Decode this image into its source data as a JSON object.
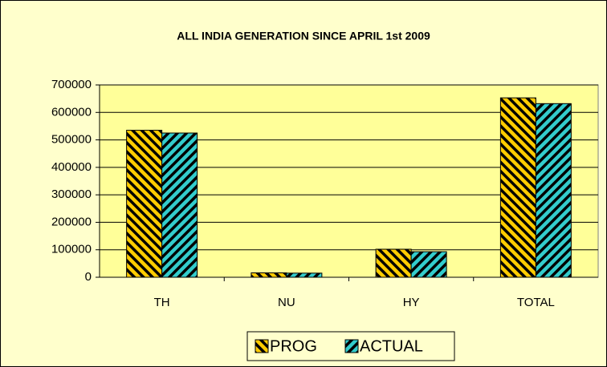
{
  "chart_data": {
    "type": "bar",
    "title": "ALL INDIA GENERATION SINCE APRIL 1st 2009",
    "categories": [
      "TH",
      "NU",
      "HY",
      "TOTAL"
    ],
    "series": [
      {
        "name": "PROG",
        "color": "#ffcc00",
        "values": [
          535000,
          16000,
          102000,
          653000
        ]
      },
      {
        "name": "ACTUAL",
        "color": "#33cccc",
        "values": [
          525000,
          15000,
          93000,
          632000
        ]
      }
    ],
    "ylim": [
      0,
      700000
    ],
    "yticks": [
      0,
      100000,
      200000,
      300000,
      400000,
      500000,
      600000,
      700000
    ],
    "grid": true,
    "legend": "bottom"
  }
}
